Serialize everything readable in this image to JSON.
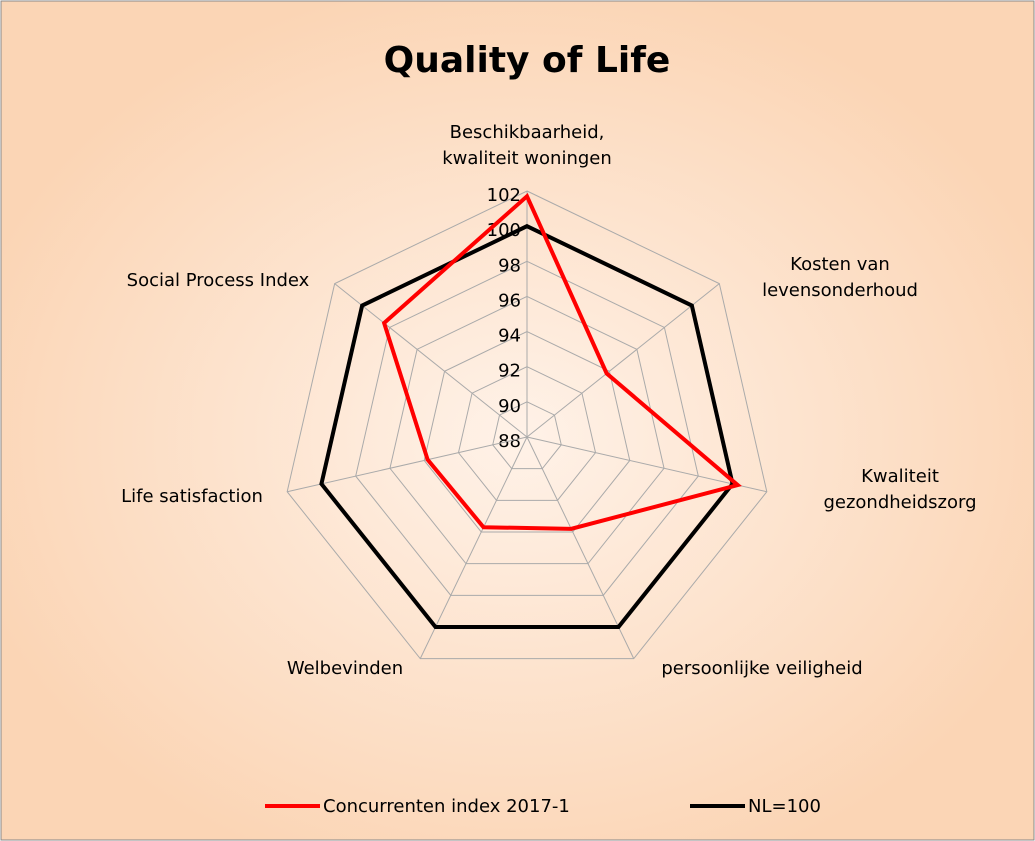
{
  "chart_data": {
    "type": "radar",
    "title": "Quality of Life",
    "categories": [
      "Beschikbaarheid,\nkwaliteit woningen",
      "Kosten van\nlevensonderhoud",
      "Kwaliteit\ngezondheidszorg",
      "persoonlijke veiligheid",
      "Welbevinden",
      "Life satisfaction",
      "Social Process Index"
    ],
    "series": [
      {
        "name": "Concurrenten index 2017-1",
        "color": "#ff0000",
        "values": [
          101.7,
          93.8,
          100.3,
          93.8,
          93.7,
          93.8,
          98.4
        ]
      },
      {
        "name": "NL=100",
        "color": "#000000",
        "values": [
          100,
          100,
          100,
          100,
          100,
          100,
          100
        ]
      }
    ],
    "ylim": [
      88,
      102
    ],
    "yticks": [
      88,
      90,
      92,
      94,
      96,
      98,
      100,
      102
    ],
    "grid": true,
    "legend": "bottom"
  }
}
